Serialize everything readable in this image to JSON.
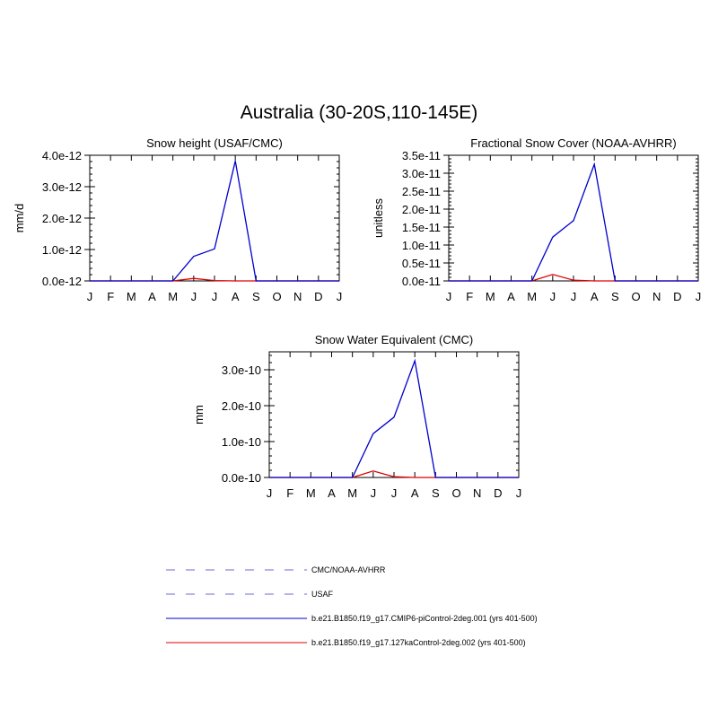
{
  "title": "Australia (30-20S,110-145E)",
  "colors": {
    "model_a": "#0000cc",
    "model_b": "#dd0000",
    "obs": "#6a6ad4"
  },
  "chart_data": [
    {
      "type": "line",
      "title": "Snow height (USAF/CMC)",
      "xlabel": "",
      "ylabel": "mm/d",
      "categories": [
        "J",
        "F",
        "M",
        "A",
        "M",
        "J",
        "J",
        "A",
        "S",
        "O",
        "N",
        "D",
        "J"
      ],
      "ylim": [
        0,
        4e-12
      ],
      "yticks": [
        0,
        1e-12,
        2e-12,
        3e-12,
        4e-12
      ],
      "ytick_labels": [
        "0.0e-12",
        "1.0e-12",
        "2.0e-12",
        "3.0e-12",
        "4.0e-12"
      ],
      "series": [
        {
          "name": "b.e21.B1850.f19_g17.CMIP6-piControl-2deg.001 (yrs 401-500)",
          "color": "#0000cc",
          "values": [
            0,
            0,
            0,
            0,
            0,
            7.8e-13,
            1.02e-12,
            3.82e-12,
            0,
            0,
            0,
            0,
            0
          ]
        },
        {
          "name": "b.e21.B1850.f19_g17.127kaControl-2deg.002 (yrs 401-500)",
          "color": "#dd0000",
          "values": [
            0,
            0,
            0,
            0,
            0,
            8e-14,
            1e-14,
            0,
            0,
            0,
            0,
            0,
            0
          ]
        }
      ]
    },
    {
      "type": "line",
      "title": "Fractional Snow Cover (NOAA-AVHRR)",
      "xlabel": "",
      "ylabel": "unitless",
      "categories": [
        "J",
        "F",
        "M",
        "A",
        "M",
        "J",
        "J",
        "A",
        "S",
        "O",
        "N",
        "D",
        "J"
      ],
      "ylim": [
        0,
        3.5e-11
      ],
      "yticks": [
        0,
        5e-12,
        1e-11,
        1.5e-11,
        2e-11,
        2.5e-11,
        3e-11,
        3.5e-11
      ],
      "ytick_labels": [
        "0.0e-11",
        "0.5e-11",
        "1.0e-11",
        "1.5e-11",
        "2.0e-11",
        "2.5e-11",
        "3.0e-11",
        "3.5e-11"
      ],
      "series": [
        {
          "name": "b.e21.B1850.f19_g17.CMIP6-piControl-2deg.001 (yrs 401-500)",
          "color": "#0000cc",
          "values": [
            0,
            0,
            0,
            0,
            0,
            1.22e-11,
            1.68e-11,
            3.25e-11,
            0,
            0,
            0,
            0,
            0
          ]
        },
        {
          "name": "b.e21.B1850.f19_g17.127kaControl-2deg.002 (yrs 401-500)",
          "color": "#dd0000",
          "values": [
            0,
            0,
            0,
            0,
            0,
            1.8e-12,
            2e-13,
            0,
            0,
            0,
            0,
            0,
            0
          ]
        }
      ]
    },
    {
      "type": "line",
      "title": "Snow Water Equivalent (CMC)",
      "xlabel": "",
      "ylabel": "mm",
      "categories": [
        "J",
        "F",
        "M",
        "A",
        "M",
        "J",
        "J",
        "A",
        "S",
        "O",
        "N",
        "D",
        "J"
      ],
      "ylim": [
        0,
        3.5e-10
      ],
      "yticks": [
        0,
        1e-10,
        2e-10,
        3e-10
      ],
      "ytick_labels": [
        "0.0e-10",
        "1.0e-10",
        "2.0e-10",
        "3.0e-10"
      ],
      "series": [
        {
          "name": "b.e21.B1850.f19_g17.CMIP6-piControl-2deg.001 (yrs 401-500)",
          "color": "#0000cc",
          "values": [
            0,
            0,
            0,
            0,
            0,
            1.22e-10,
            1.68e-10,
            3.25e-10,
            0,
            0,
            0,
            0,
            0
          ]
        },
        {
          "name": "b.e21.B1850.f19_g17.127kaControl-2deg.002 (yrs 401-500)",
          "color": "#dd0000",
          "values": [
            0,
            0,
            0,
            0,
            0,
            1.8e-11,
            2e-12,
            0,
            0,
            0,
            0,
            0,
            0
          ]
        }
      ]
    }
  ],
  "legend": [
    {
      "label": "CMC/NOAA-AVHRR",
      "style": "dashed",
      "color": "#6a6ad4"
    },
    {
      "label": "USAF",
      "style": "dashed",
      "color": "#6a6ad4"
    },
    {
      "label": "b.e21.B1850.f19_g17.CMIP6-piControl-2deg.001 (yrs 401-500)",
      "style": "solid",
      "color": "#0000cc"
    },
    {
      "label": "b.e21.B1850.f19_g17.127kaControl-2deg.002 (yrs 401-500)",
      "style": "solid",
      "color": "#dd0000"
    }
  ]
}
